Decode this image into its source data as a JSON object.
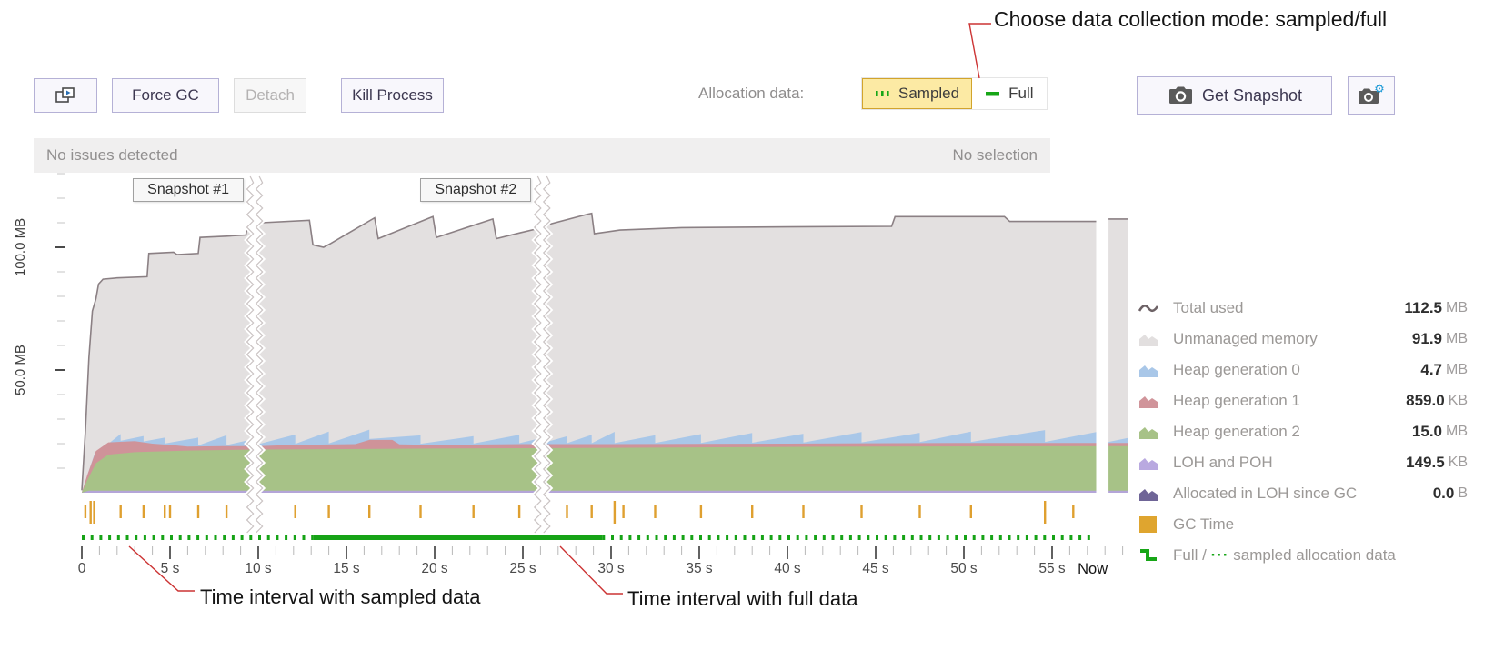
{
  "annotations": {
    "top": "Choose data collection mode: sampled/full",
    "bottom_left": "Time interval with sampled data",
    "bottom_mid": "Time interval with full data"
  },
  "toolbar": {
    "force_gc": "Force GC",
    "detach": "Detach",
    "kill_process": "Kill Process",
    "allocation_label": "Allocation data:",
    "sampled": "Sampled",
    "full": "Full",
    "get_snapshot": "Get Snapshot"
  },
  "status_bar": {
    "left": "No issues detected",
    "right": "No selection"
  },
  "y_axis": {
    "labels": [
      "100.0 MB",
      "50.0 MB"
    ]
  },
  "legend": {
    "rows": [
      {
        "label": "Total used",
        "value": "112.5",
        "unit": "MB",
        "color": "#6d6266",
        "icon": "wave"
      },
      {
        "label": "Unmanaged memory",
        "value": "91.9",
        "unit": "MB",
        "color": "#e2dfdf",
        "icon": "area"
      },
      {
        "label": "Heap generation 0",
        "value": "4.7",
        "unit": "MB",
        "color": "#a9c7e8",
        "icon": "area"
      },
      {
        "label": "Heap generation 1",
        "value": "859.0",
        "unit": "KB",
        "color": "#d0949a",
        "icon": "area"
      },
      {
        "label": "Heap generation 2",
        "value": "15.0",
        "unit": "MB",
        "color": "#a7c287",
        "icon": "area"
      },
      {
        "label": "LOH and POH",
        "value": "149.5",
        "unit": "KB",
        "color": "#b9a9e0",
        "icon": "area"
      },
      {
        "label": "Allocated in LOH since GC",
        "value": "0.0",
        "unit": "B",
        "color": "#6f6597",
        "icon": "area"
      },
      {
        "label": "GC Time",
        "value": "",
        "unit": "",
        "color": "#dfa52f",
        "icon": "square"
      },
      {
        "label_parts": [
          "Full / ",
          "···",
          " sampled allocation data"
        ],
        "value": "",
        "unit": "",
        "color": "#17a617",
        "icon": "step"
      }
    ]
  },
  "chart_data": {
    "type": "area",
    "title": "Memory profiler timeline",
    "x_unit": "s",
    "x_range_s": [
      0,
      59.3
    ],
    "x_minor_step": 1,
    "x_major_step": 5,
    "x_ticks_labels": [
      "0",
      "5 s",
      "10 s",
      "15 s",
      "20 s",
      "25 s",
      "30 s",
      "35 s",
      "40 s",
      "45 s",
      "50 s",
      "55 s"
    ],
    "now_label": "Now",
    "now_gap_s": [
      57.5,
      58.2
    ],
    "y_minor_step_mb": 10,
    "y_major_ticks_mb": [
      50,
      100
    ],
    "ylim_mb": [
      0,
      130
    ],
    "series_colors": {
      "total_line": "#8b8084",
      "unmanaged": "#e3e0e0",
      "gen0": "#a9c7e8",
      "gen1": "#cf9399",
      "gen2": "#a7c287",
      "loh": "#b4a5d8",
      "gc": "#dfa030",
      "alloc_green": "#16a316"
    },
    "total_used_mb": [
      [
        0,
        1
      ],
      [
        0.2,
        25
      ],
      [
        0.4,
        55
      ],
      [
        0.6,
        74
      ],
      [
        0.8,
        79
      ],
      [
        0.95,
        85
      ],
      [
        1.2,
        87
      ],
      [
        2,
        87.5
      ],
      [
        3.7,
        88
      ],
      [
        3.8,
        97.5
      ],
      [
        5.2,
        98
      ],
      [
        5.4,
        97
      ],
      [
        6.6,
        97.5
      ],
      [
        6.7,
        104
      ],
      [
        8.2,
        104.5
      ],
      [
        9.3,
        105
      ],
      [
        9.4,
        109
      ],
      [
        10.2,
        110
      ],
      [
        12.9,
        111
      ],
      [
        13.1,
        101
      ],
      [
        13.7,
        100
      ],
      [
        14.1,
        101.5
      ],
      [
        16.6,
        112
      ],
      [
        16.8,
        103.5
      ],
      [
        19.9,
        112.5
      ],
      [
        20.1,
        104
      ],
      [
        23.3,
        111.5
      ],
      [
        23.5,
        103.5
      ],
      [
        24.9,
        106
      ],
      [
        26.1,
        108
      ],
      [
        26.3,
        109
      ],
      [
        28.7,
        113.5
      ],
      [
        28.9,
        113.8
      ],
      [
        29.05,
        105.5
      ],
      [
        30.5,
        107
      ],
      [
        34,
        108
      ],
      [
        40,
        108.3
      ],
      [
        45.9,
        108.5
      ],
      [
        46.1,
        112.5
      ],
      [
        52.3,
        112.5
      ],
      [
        52.6,
        110.5
      ],
      [
        57.5,
        110.5
      ],
      [
        58.2,
        111.5
      ],
      [
        59.3,
        111.5
      ]
    ],
    "gen2_top_mb": [
      [
        0,
        0
      ],
      [
        0.3,
        5
      ],
      [
        0.8,
        12
      ],
      [
        1.5,
        15.5
      ],
      [
        3,
        16.5
      ],
      [
        6,
        17.2
      ],
      [
        10,
        17.6
      ],
      [
        20,
        18
      ],
      [
        30,
        18.3
      ],
      [
        45,
        18.8
      ],
      [
        59.3,
        19
      ]
    ],
    "gen1_top_mb": [
      [
        0,
        0
      ],
      [
        0.3,
        7
      ],
      [
        0.8,
        17
      ],
      [
        1.5,
        20.5
      ],
      [
        3,
        21
      ],
      [
        4,
        20
      ],
      [
        5,
        19.5
      ],
      [
        6,
        18.8
      ],
      [
        8,
        19
      ],
      [
        10,
        19
      ],
      [
        12,
        19.5
      ],
      [
        15.5,
        19.8
      ],
      [
        16.3,
        21.5
      ],
      [
        17.6,
        21.5
      ],
      [
        18,
        19.7
      ],
      [
        20,
        19.5
      ],
      [
        25,
        19.8
      ],
      [
        30,
        19.8
      ],
      [
        40,
        20
      ],
      [
        50,
        20.3
      ],
      [
        59.3,
        20.3
      ]
    ],
    "loh_top_mb": [
      [
        0,
        0
      ],
      [
        0.4,
        0.8
      ],
      [
        59.3,
        0.8
      ]
    ],
    "gen0_sawtooth": {
      "base_mb": 0.4,
      "segments": [
        [
          0.7,
          2.2,
          3.2
        ],
        [
          2.2,
          3.5,
          2.6
        ],
        [
          3.5,
          4.7,
          2.8
        ],
        [
          4.7,
          6.6,
          3.6
        ],
        [
          6.6,
          8.2,
          4.4
        ],
        [
          8.2,
          9.8,
          3.0
        ],
        [
          9.8,
          12.1,
          4.2
        ],
        [
          12.1,
          14.0,
          5.2
        ],
        [
          14.0,
          16.3,
          4.2
        ],
        [
          16.3,
          19.2,
          3.8
        ],
        [
          19.2,
          22.2,
          3.4
        ],
        [
          22.2,
          24.8,
          3.8
        ],
        [
          24.8,
          26.1,
          2.6
        ],
        [
          26.1,
          27.5,
          3.2
        ],
        [
          27.5,
          28.9,
          3.8
        ],
        [
          28.9,
          30.2,
          5.0
        ],
        [
          30.2,
          32.5,
          3.6
        ],
        [
          32.5,
          35.1,
          4.0
        ],
        [
          35.1,
          38.0,
          4.4
        ],
        [
          38.0,
          40.9,
          4.0
        ],
        [
          40.9,
          44.2,
          4.6
        ],
        [
          44.2,
          47.5,
          4.2
        ],
        [
          47.5,
          50.4,
          4.6
        ],
        [
          50.4,
          54.6,
          5.2
        ],
        [
          54.6,
          57.5,
          4.4
        ],
        [
          58.2,
          59.3,
          2.0
        ]
      ]
    },
    "gc_events": [
      [
        0.2,
        1
      ],
      [
        0.5,
        2
      ],
      [
        0.7,
        2
      ],
      [
        2.2,
        1
      ],
      [
        3.5,
        1
      ],
      [
        4.7,
        1
      ],
      [
        5.0,
        1
      ],
      [
        6.6,
        1
      ],
      [
        8.2,
        1
      ],
      [
        12.1,
        1
      ],
      [
        14.0,
        1
      ],
      [
        16.3,
        1
      ],
      [
        19.2,
        1
      ],
      [
        22.2,
        1
      ],
      [
        24.8,
        1
      ],
      [
        27.5,
        1
      ],
      [
        28.9,
        1
      ],
      [
        30.2,
        2
      ],
      [
        30.7,
        1
      ],
      [
        32.5,
        1
      ],
      [
        35.1,
        1
      ],
      [
        38.0,
        1
      ],
      [
        40.9,
        1
      ],
      [
        44.2,
        1
      ],
      [
        47.5,
        1
      ],
      [
        50.4,
        1
      ],
      [
        54.6,
        2
      ],
      [
        56.2,
        1
      ]
    ],
    "allocation_intervals": {
      "sampled_s": [
        [
          0,
          13.1
        ],
        [
          29.5,
          57.2
        ]
      ],
      "full_s": [
        [
          13.1,
          29.5
        ]
      ]
    },
    "snapshots": [
      {
        "label": "Snapshot #1",
        "t_s": 9.8
      },
      {
        "label": "Snapshot #2",
        "t_s": 26.1
      }
    ]
  }
}
